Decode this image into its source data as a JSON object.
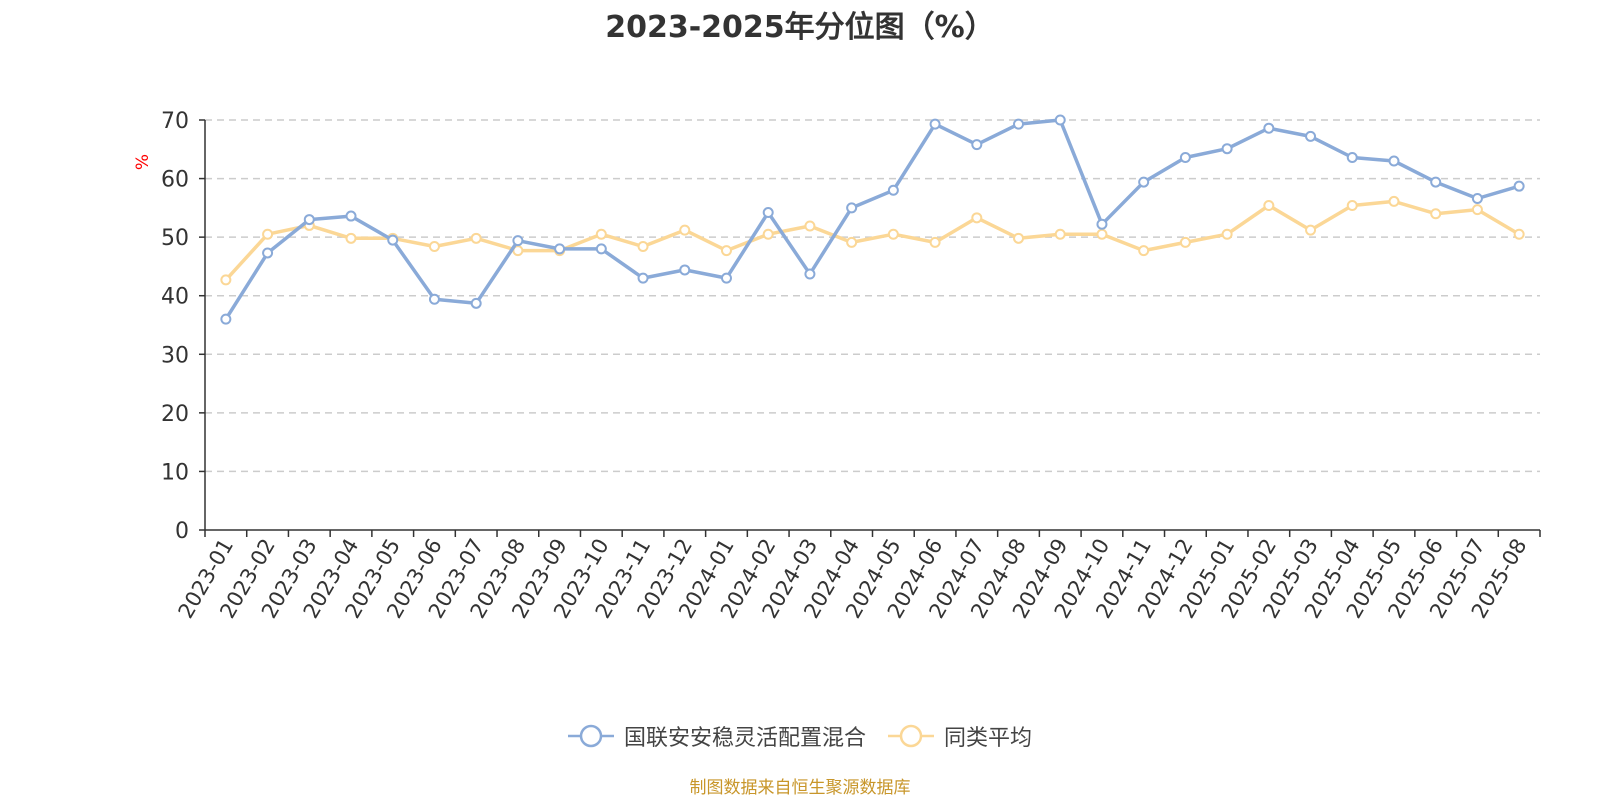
{
  "chart_data": {
    "type": "line",
    "title": "2023-2025年分位图（%）",
    "ylabel": "%",
    "xlabel": "",
    "ylim": [
      0,
      70
    ],
    "yticks": [
      0,
      10,
      20,
      30,
      40,
      50,
      60,
      70
    ],
    "grid": "horizontal-dashed",
    "legend_position": "bottom",
    "categories": [
      "2023-01",
      "2023-02",
      "2023-03",
      "2023-04",
      "2023-05",
      "2023-06",
      "2023-07",
      "2023-08",
      "2023-09",
      "2023-10",
      "2023-11",
      "2023-12",
      "2024-01",
      "2024-02",
      "2024-03",
      "2024-04",
      "2024-05",
      "2024-06",
      "2024-07",
      "2024-08",
      "2024-09",
      "2024-10",
      "2024-11",
      "2024-12",
      "2025-01",
      "2025-02",
      "2025-03",
      "2025-04",
      "2025-05",
      "2025-06",
      "2025-07",
      "2025-08"
    ],
    "series": [
      {
        "name": "国联安安稳灵活配置混合",
        "color": "#8aaad8",
        "values": [
          36.0,
          47.3,
          53.0,
          53.6,
          49.5,
          39.4,
          38.7,
          49.4,
          48.0,
          48.0,
          43.0,
          44.4,
          43.0,
          54.2,
          43.7,
          55.0,
          58.0,
          69.3,
          65.8,
          69.3,
          70.0,
          52.2,
          59.4,
          63.6,
          65.1,
          68.6,
          67.2,
          63.6,
          63.0,
          59.4,
          56.6,
          58.7
        ]
      },
      {
        "name": "同类平均",
        "color": "#fbd796",
        "values": [
          42.7,
          50.5,
          52.0,
          49.8,
          49.8,
          48.4,
          49.8,
          47.7,
          47.7,
          50.5,
          48.4,
          51.2,
          47.7,
          50.5,
          51.9,
          49.1,
          50.5,
          49.1,
          53.3,
          49.8,
          50.5,
          50.5,
          47.7,
          49.1,
          50.5,
          55.4,
          51.2,
          55.4,
          56.1,
          54.0,
          54.7,
          50.5
        ]
      }
    ]
  },
  "source_note": "制图数据来自恒生聚源数据库"
}
